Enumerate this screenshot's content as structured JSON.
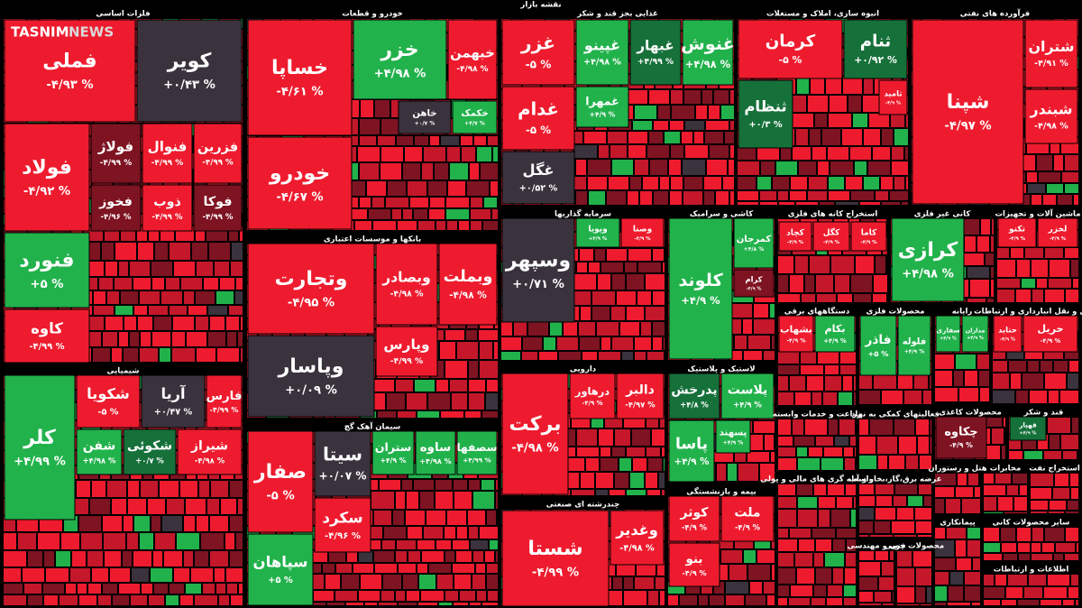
{
  "header": {
    "title": "نقشه بازار",
    "watermark": {
      "brand": "TASNIM",
      "suffix": "NEWS"
    }
  },
  "sectors": [
    {
      "title": "فلزات اساسی",
      "tiles": [
        {
          "name": "فملی",
          "change": "-۴/۹۳ %"
        },
        {
          "name": "کویر",
          "change": "+۰/۴۳ %"
        },
        {
          "name": "فولاد",
          "change": "-۴/۹۲ %"
        },
        {
          "name": "فولاژ",
          "change": "-۴/۹۹ %"
        },
        {
          "name": "فنوال",
          "change": "-۴/۹۹ %"
        },
        {
          "name": "فزرین",
          "change": "-۴/۹۹ %"
        },
        {
          "name": "فخوز",
          "change": "-۴/۹۶ %"
        },
        {
          "name": "ذوب",
          "change": "-۴/۹۹ %"
        },
        {
          "name": "فوکا",
          "change": "-۴/۹۹ %"
        },
        {
          "name": "فنورد",
          "change": "+۵ %"
        },
        {
          "name": "کاوه",
          "change": "-۴/۹۹ %"
        }
      ]
    },
    {
      "title": "خودرو و قطعات",
      "tiles": [
        {
          "name": "خساپا",
          "change": "-۴/۶۱ %"
        },
        {
          "name": "خودرو",
          "change": "-۴/۶۷ %"
        },
        {
          "name": "خزر",
          "change": "+۴/۹۸ %"
        },
        {
          "name": "خبهمن",
          "change": "-۴/۹۸ %"
        },
        {
          "name": "خاهن",
          "change": "+۰/۷ %"
        },
        {
          "name": "خکمک",
          "change": "+۴/۷ %"
        }
      ]
    },
    {
      "title": "غذایی بجز قند و شکر",
      "tiles": [
        {
          "name": "غزر",
          "change": "-۵ %"
        },
        {
          "name": "غدام",
          "change": "-۵ %"
        },
        {
          "name": "غگل",
          "change": "+۰/۵۲ %"
        },
        {
          "name": "غپینو",
          "change": "+۴/۹۸ %"
        },
        {
          "name": "غبهار",
          "change": "+۴/۹۹ %"
        },
        {
          "name": "غنوش",
          "change": "+۴/۹۸ %"
        },
        {
          "name": "غمهرا",
          "change": "+۴/۹ %"
        }
      ]
    },
    {
      "title": "انبوه سازی، املاک و مستغلات",
      "tiles": [
        {
          "name": "کرمان",
          "change": "-۵ %"
        },
        {
          "name": "ثنام",
          "change": "+۰/۹۲ %"
        },
        {
          "name": "ثنظام",
          "change": "+۰/۳ %"
        },
        {
          "name": "ثامید",
          "change": "-۴/۹ %"
        }
      ]
    },
    {
      "title": "فرآورده های نفتی",
      "tiles": [
        {
          "name": "شپنا",
          "change": "-۴/۹۷ %"
        },
        {
          "name": "شتران",
          "change": "-۴/۹۱ %"
        },
        {
          "name": "شبندر",
          "change": "-۴/۹۸ %"
        }
      ]
    },
    {
      "title": "بانکها و موسسات اعتباری",
      "tiles": [
        {
          "name": "وتجارت",
          "change": "-۴/۹۵ %"
        },
        {
          "name": "وبصادر",
          "change": "-۴/۹۸ %"
        },
        {
          "name": "وبملت",
          "change": "-۴/۹۸ %"
        },
        {
          "name": "وپاسار",
          "change": "+۰/۰۹ %"
        },
        {
          "name": "وپارس",
          "change": "-۴/۹۹ %"
        }
      ]
    },
    {
      "title": "شیمیایی",
      "tiles": [
        {
          "name": "کلر",
          "change": "+۴/۹۹ %"
        },
        {
          "name": "شکویا",
          "change": "-۵ %"
        },
        {
          "name": "آریا",
          "change": "+۰/۴۷ %"
        },
        {
          "name": "فارس",
          "change": "-۴/۹۹ %"
        },
        {
          "name": "شفن",
          "change": "+۴/۹۸ %"
        },
        {
          "name": "شکوئی",
          "change": "+۰/۷ %"
        },
        {
          "name": "شیراز",
          "change": "-۴/۹۸ %"
        }
      ]
    },
    {
      "title": "سیمان آهک گچ",
      "tiles": [
        {
          "name": "صفار",
          "change": "-۵ %"
        },
        {
          "name": "سپاهان",
          "change": "+۵ %"
        },
        {
          "name": "سیتا",
          "change": "+۰/۰۷ %"
        },
        {
          "name": "سکرد",
          "change": "-۴/۹۶ %"
        },
        {
          "name": "ستران",
          "change": "+۴/۹ %"
        },
        {
          "name": "ساوه",
          "change": "+۴/۹۸ %"
        },
        {
          "name": "سصفها",
          "change": "+۴/۹۹ %"
        }
      ]
    },
    {
      "title": "سرمایه گذاریها",
      "tiles": [
        {
          "name": "وسپهر",
          "change": "+۰/۷۱ %"
        },
        {
          "name": "وپویا",
          "change": "+۴/۹ %"
        },
        {
          "name": "وصنا",
          "change": "-۴/۹ %"
        }
      ]
    },
    {
      "title": "کاشی و سرامیک",
      "tiles": [
        {
          "name": "کلوند",
          "change": "+۴/۹ %"
        },
        {
          "name": "کمرجان",
          "change": "+۴/۸ %"
        },
        {
          "name": "کرام",
          "change": "-۴/۹ %"
        }
      ]
    },
    {
      "title": "استخراج کانه های فلزی",
      "tiles": [
        {
          "name": "کگل",
          "change": "-۴/۹ %"
        },
        {
          "name": "کاما",
          "change": "-۴/۹ %"
        },
        {
          "name": "کچاد",
          "change": "-۴/۹ %"
        }
      ]
    },
    {
      "title": "کانی غیر فلزی",
      "tiles": [
        {
          "name": "کرازی",
          "change": "+۴/۹۸ %"
        }
      ]
    },
    {
      "title": "ماشین آلات و تجهیزات",
      "tiles": [
        {
          "name": "تکنو",
          "change": "-۴/۹ %"
        },
        {
          "name": "لخزر",
          "change": "-۴/۹ %"
        }
      ]
    },
    {
      "title": "دارویی",
      "tiles": [
        {
          "name": "برکت",
          "change": "-۴/۹۸ %"
        },
        {
          "name": "درهاور",
          "change": "-۴/۹ %"
        },
        {
          "name": "دالبر",
          "change": "-۴/۹۷ %"
        }
      ]
    },
    {
      "title": "چندرشته ای صنعتی",
      "tiles": [
        {
          "name": "شستا",
          "change": "-۴/۹۹ %"
        },
        {
          "name": "وغدیر",
          "change": "-۴/۹۸ %"
        }
      ]
    },
    {
      "title": "لاستیک و پلاستیک",
      "tiles": [
        {
          "name": "پدرخش",
          "change": "+۴/۸ %"
        },
        {
          "name": "پلاست",
          "change": "+۴/۹ %"
        },
        {
          "name": "پاسا",
          "change": "+۴/۹ %"
        },
        {
          "name": "پسهند",
          "change": "+۴/۹ %"
        }
      ]
    },
    {
      "title": "بیمه و بازنشستگی",
      "tiles": [
        {
          "name": "کوثر",
          "change": "-۴/۹ %"
        },
        {
          "name": "ملت",
          "change": "-۴/۹ %"
        },
        {
          "name": "بنو",
          "change": "-۴/۹ %"
        }
      ]
    },
    {
      "title": "دستگاههای برقی",
      "tiles": [
        {
          "name": "بکام",
          "change": "+۴/۹ %"
        },
        {
          "name": "بشهاب",
          "change": "-۴/۹ %"
        }
      ]
    },
    {
      "title": "محصولات فلزی",
      "tiles": [
        {
          "name": "فاذر",
          "change": "+۵ %"
        },
        {
          "name": "فلوله",
          "change": "+۴/۹ %"
        }
      ]
    },
    {
      "title": "رایانه",
      "tiles": [
        {
          "name": "مداران",
          "change": "+۴/۹ %"
        },
        {
          "name": "سفاری",
          "change": "+۴/۹ %"
        }
      ]
    },
    {
      "title": "حمل و نقل انبارداری و ارتباطات",
      "tiles": [
        {
          "name": "حریل",
          "change": "-۴/۹ %"
        },
        {
          "name": "حتاید",
          "change": "-۴/۹ %"
        }
      ]
    },
    {
      "title": "زراعت و خدمات وابسته",
      "tiles": []
    },
    {
      "title": "فعالیتهای کمکی به نهاد",
      "tiles": []
    },
    {
      "title": "عرضه برق،گاز،بخار و آب",
      "tiles": []
    },
    {
      "title": "محصولات کاغذی",
      "tiles": [
        {
          "name": "چکاوه",
          "change": "-۴/۹ %"
        }
      ]
    },
    {
      "title": "قند و شکر",
      "tiles": [
        {
          "name": "قهپار",
          "change": "+۴/۹ %"
        }
      ]
    },
    {
      "title": "واسطه گری های مالی و پولی",
      "tiles": []
    },
    {
      "title": "هتل و رستوران",
      "tiles": []
    },
    {
      "title": "مخابرات",
      "tiles": []
    },
    {
      "title": "استخراج نفت",
      "tiles": []
    },
    {
      "title": "فنی و مهندسی",
      "tiles": []
    },
    {
      "title": "محصولات چوبی",
      "tiles": []
    },
    {
      "title": "پیمانکاری",
      "tiles": []
    },
    {
      "title": "سایر محصولات کانی",
      "tiles": []
    },
    {
      "title": "اطلاعات و ارتباطات",
      "tiles": []
    }
  ]
}
